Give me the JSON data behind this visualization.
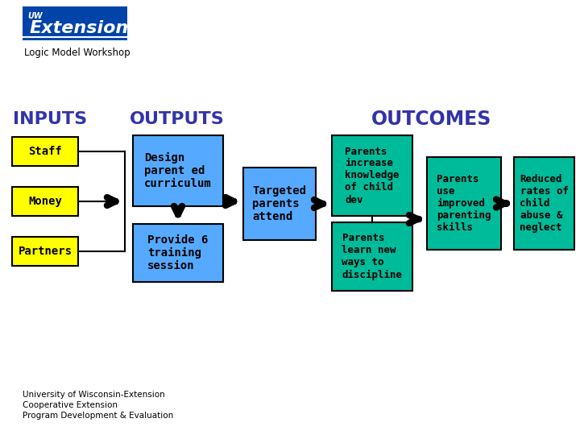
{
  "title": "Logic Model Workshop",
  "bg_color": "#ffffff",
  "header_inputs": "INPUTS",
  "header_outputs": "OUTPUTS",
  "header_outcomes": "OUTCOMES",
  "header_color": "#3333aa",
  "yellow_color": "#ffff00",
  "light_blue_color": "#55aaff",
  "teal_color": "#00bb99",
  "black": "#000000",
  "inputs": [
    "Staff",
    "Money",
    "Partners"
  ],
  "outputs_top": "Design\nparent ed\ncurriculum",
  "outputs_middle": "Targeted\nparents\nattend",
  "outputs_bottom": "Provide 6\ntraining\nsession",
  "outcomes_short1": "Parents\nincrease\nknowledge\nof child\ndev",
  "outcomes_short2": "Parents\nlearn new\nways to\ndiscipline",
  "outcomes_mid": "Parents\nuse\nimproved\nparenting\nskills",
  "outcomes_long": "Reduced\nrates of\nchild\nabuse &\nneglect",
  "footer_lines": [
    "University of Wisconsin-Extension",
    "Cooperative Extension",
    "Program Development & Evaluation"
  ],
  "logo_text1": "UW",
  "logo_text2": "Extension",
  "logo_color": "#0044aa"
}
